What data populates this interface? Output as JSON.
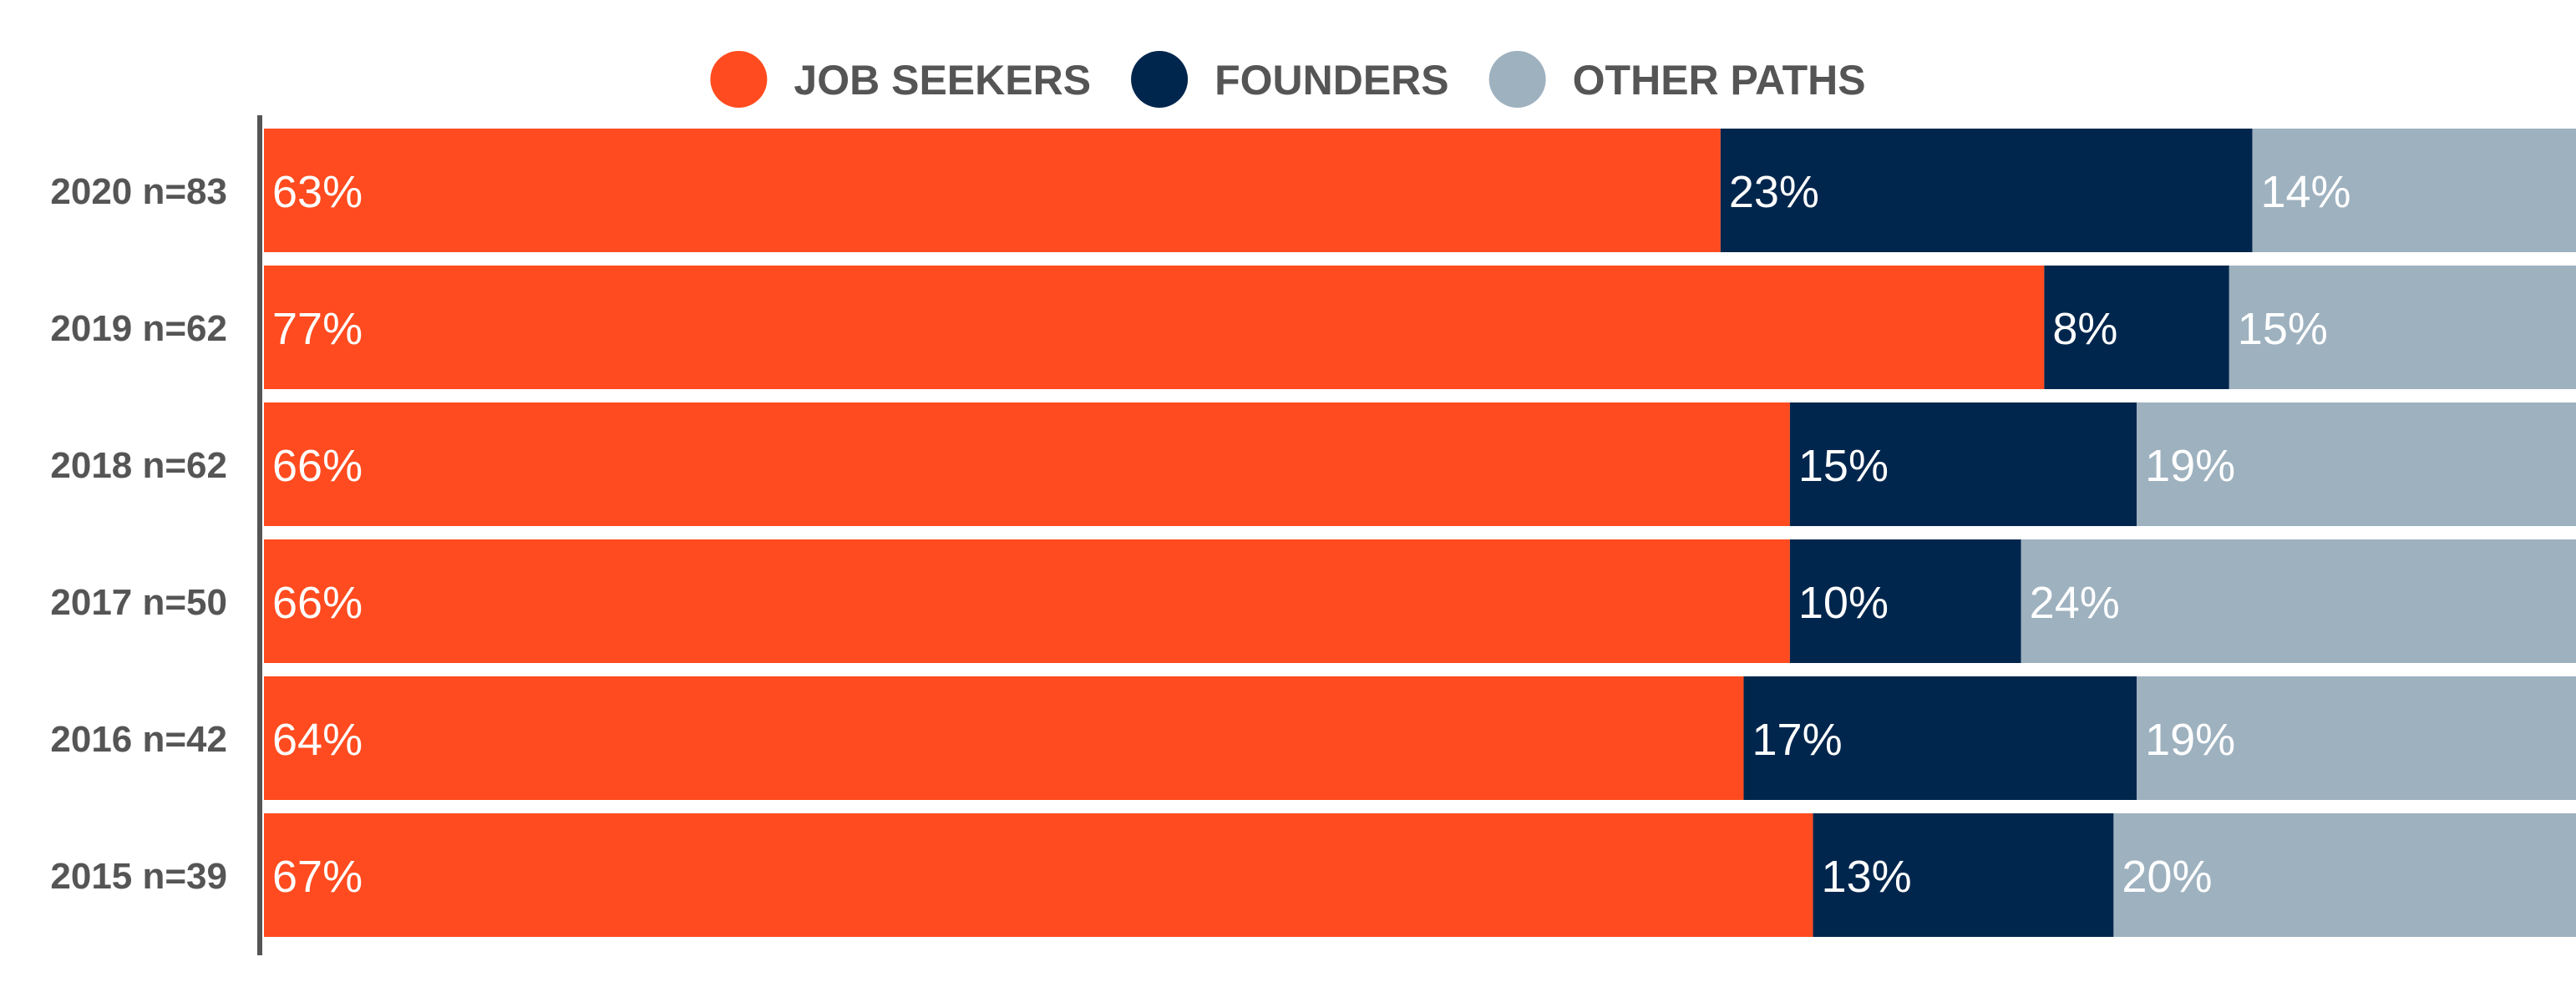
{
  "chart_data": {
    "type": "bar",
    "orientation": "horizontal",
    "stacked": true,
    "normalized": true,
    "categories": [
      "2020 n=83",
      "2019 n=62",
      "2018 n=62",
      "2017 n=50",
      "2016 n=42",
      "2015 n=39"
    ],
    "series": [
      {
        "name": "JOB SEEKERS",
        "color": "#FF4B1F",
        "values": [
          63,
          77,
          66,
          66,
          64,
          67
        ]
      },
      {
        "name": "FOUNDERS",
        "color": "#00264D",
        "values": [
          23,
          8,
          15,
          10,
          17,
          13
        ]
      },
      {
        "name": "OTHER PATHS",
        "color": "#9EB1BF",
        "values": [
          14,
          15,
          19,
          24,
          19,
          20
        ]
      }
    ],
    "value_suffix": "%",
    "xlim": [
      0,
      100
    ],
    "legend_position": "top-center",
    "grid": false,
    "title": "",
    "xlabel": "",
    "ylabel": ""
  },
  "colors": {
    "axis": "#555555",
    "label_text": "#555555",
    "data_label": "#ffffff"
  }
}
